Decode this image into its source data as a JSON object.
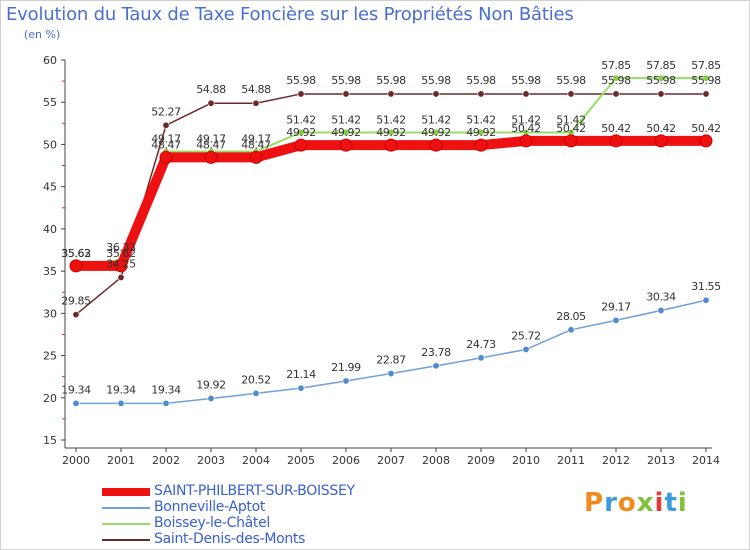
{
  "chart_data": {
    "type": "line",
    "title": "Evolution du Taux de Taxe Foncière sur les Propriétés Non Bâties",
    "ylabel": "(en %)",
    "xlabel": "",
    "ylim": [
      15,
      60
    ],
    "yticks": [
      "15",
      "20",
      "25",
      "30",
      "35",
      "40",
      "45",
      "50",
      "55",
      "60"
    ],
    "categories": [
      "2000",
      "2001",
      "2002",
      "2003",
      "2004",
      "2005",
      "2006",
      "2007",
      "2008",
      "2009",
      "2010",
      "2011",
      "2012",
      "2013",
      "2014"
    ],
    "grid": false,
    "series": [
      {
        "name": "SAINT-PHILBERT-SUR-BOISSEY",
        "color": "#ee1111",
        "values": [
          35.62,
          35.62,
          48.47,
          48.47,
          48.47,
          49.92,
          49.92,
          49.92,
          49.92,
          49.92,
          50.42,
          50.42,
          50.42,
          50.42,
          50.42
        ],
        "labels": [
          "35.62",
          "35.62",
          "48.47",
          "48.47",
          "48.47",
          "49.92",
          "49.92",
          "49.92",
          "49.92",
          "49.92",
          "50.42",
          "50.42",
          "50.42",
          "50.42",
          "50.42"
        ]
      },
      {
        "name": "Bonneville-Aptot",
        "color": "#6fa0d8",
        "values": [
          19.34,
          19.34,
          19.34,
          19.92,
          20.52,
          21.14,
          21.99,
          22.87,
          23.78,
          24.73,
          25.72,
          28.05,
          29.17,
          30.34,
          31.55
        ],
        "labels": [
          "19.34",
          "19.34",
          "19.34",
          "19.92",
          "20.52",
          "21.14",
          "21.99",
          "22.87",
          "23.78",
          "24.73",
          "25.72",
          "28.05",
          "29.17",
          "30.34",
          "31.55"
        ]
      },
      {
        "name": "Boissey-le-Châtel",
        "color": "#99dd66",
        "values": [
          35.63,
          36.33,
          49.17,
          49.17,
          49.17,
          51.42,
          51.42,
          51.42,
          51.42,
          51.42,
          51.42,
          51.42,
          57.85,
          57.85,
          57.85
        ],
        "labels": [
          "35.63",
          "36.33",
          "49.17",
          "49.17",
          "49.17",
          "51.42",
          "51.42",
          "51.42",
          "51.42",
          "51.42",
          "51.42",
          "51.42",
          "57.85",
          "57.85",
          "57.85"
        ]
      },
      {
        "name": "Saint-Denis-des-Monts",
        "color": "#6b2a2a",
        "values": [
          29.85,
          34.25,
          52.27,
          54.88,
          54.88,
          55.98,
          55.98,
          55.98,
          55.98,
          55.98,
          55.98,
          55.98,
          55.98,
          55.98,
          55.98
        ],
        "labels": [
          "29.85",
          "34.25",
          "52.27",
          "54.88",
          "54.88",
          "55.98",
          "55.98",
          "55.98",
          "55.98",
          "55.98",
          "55.98",
          "55.98",
          "55.98",
          "55.98",
          "55.98"
        ]
      }
    ]
  },
  "logo": {
    "text": "Proxiti",
    "colors": [
      "#f08a1c",
      "#3a9be0",
      "#f08a1c",
      "#7ec23a",
      "#e83a3a",
      "#3a9be0",
      "#7ec23a"
    ]
  }
}
